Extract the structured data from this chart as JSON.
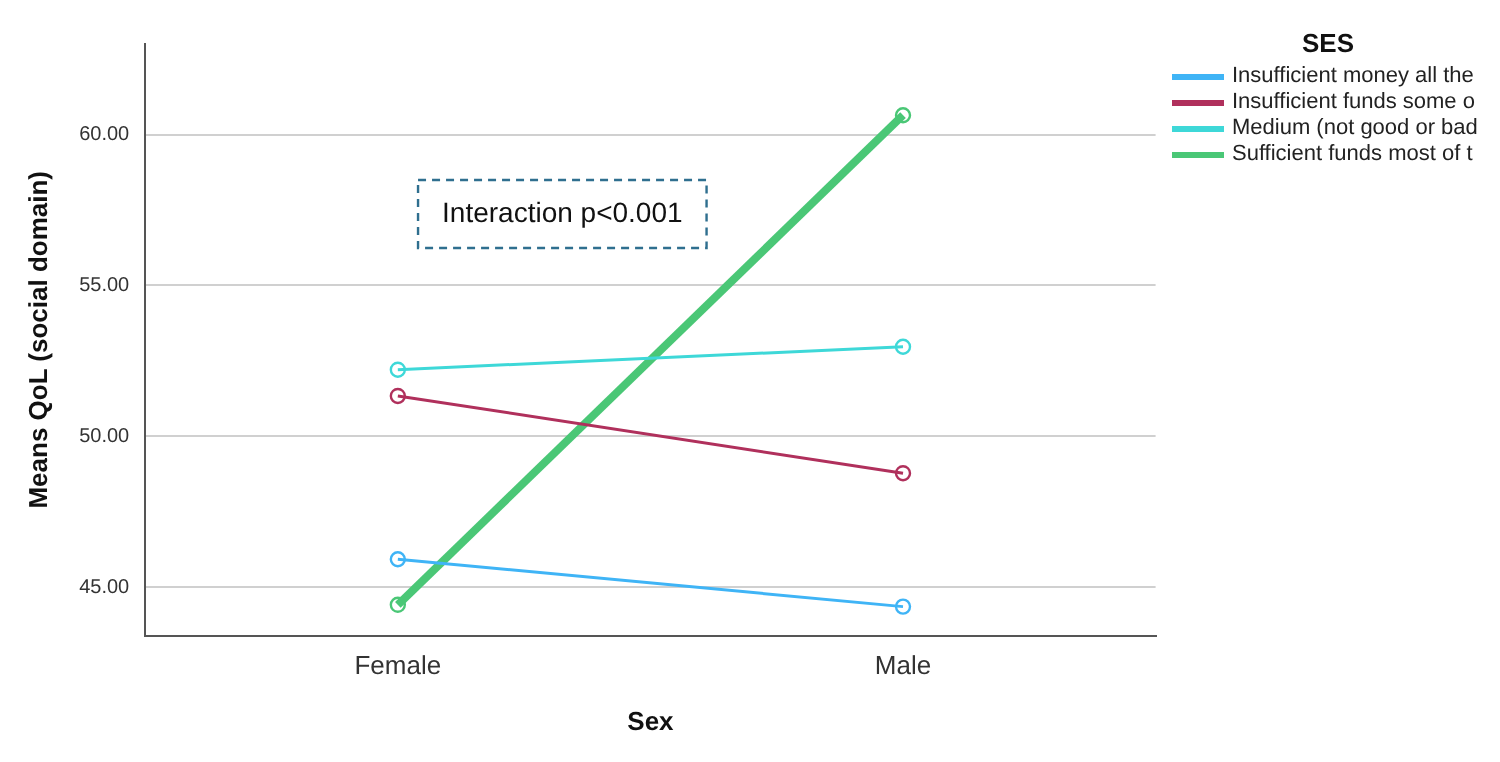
{
  "chart_data": {
    "type": "line",
    "xlabel": "Sex",
    "ylabel": "Means QoL (social domain)",
    "legend_title": "SES",
    "categories": [
      "Female",
      "Male"
    ],
    "series": [
      {
        "name": "Insufficient money all the",
        "color": "#3fb4f6",
        "values": [
          45.93,
          44.36
        ]
      },
      {
        "name": "Insufficient funds some o",
        "color": "#b0305c",
        "values": [
          51.34,
          48.78
        ]
      },
      {
        "name": "Medium (not good or bad",
        "color": "#3ed8d8",
        "values": [
          52.21,
          52.97
        ]
      },
      {
        "name": "Sufficient funds most of t",
        "color": "#4ac776",
        "values": [
          44.42,
          60.64
        ]
      }
    ],
    "ylim": [
      43.4,
      63
    ],
    "yticks": [
      {
        "value": 45,
        "label": "45.00"
      },
      {
        "value": 50,
        "label": "50.00"
      },
      {
        "value": 55,
        "label": "55.00"
      },
      {
        "value": 60,
        "label": "60.00"
      }
    ],
    "grid": "y",
    "legend": "top right",
    "marker": "circle",
    "line_style": "solid",
    "annotations": [
      "Interaction p<0.001"
    ]
  }
}
